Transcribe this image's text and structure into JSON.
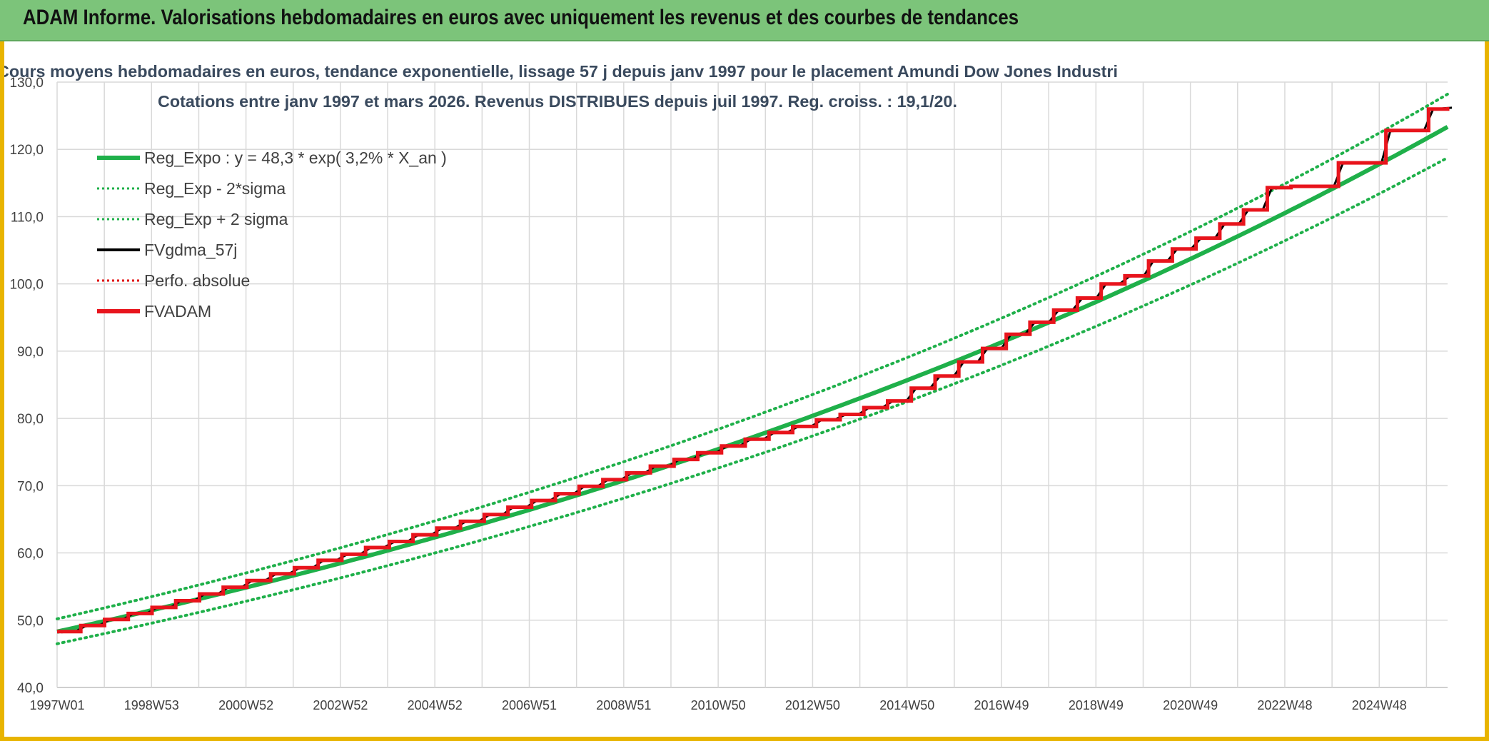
{
  "header": {
    "title": "ADAM Informe. Valorisations hebdomadaires en euros avec uniquement les revenus et des courbes de tendances"
  },
  "chart_data": {
    "type": "line",
    "title": "Cours moyens hebdomadaires en euros, tendance exponentielle, lissage 57 j depuis janv 1997 pour le placement Amundi Dow Jones Industri",
    "subtitle": "Cotations entre janv 1997 et mars 2026. Revenus DISTRIBUES depuis juil 1997. Reg. croiss. : 19,1/20.",
    "xlabel": "",
    "ylabel": "",
    "ylim": [
      40,
      130
    ],
    "yticks": [
      "40,0",
      "50,0",
      "60,0",
      "70,0",
      "80,0",
      "90,0",
      "100,0",
      "110,0",
      "120,0",
      "130,0"
    ],
    "xticks": [
      "1997W01",
      "1998W53",
      "2000W52",
      "2002W52",
      "2004W52",
      "2006W51",
      "2008W51",
      "2010W50",
      "2012W50",
      "2014W50",
      "2016W49",
      "2018W49",
      "2020W49",
      "2022W48",
      "2024W48"
    ],
    "x_range_years": [
      1997.0,
      2026.3
    ],
    "grid": true,
    "legend_position": "top-left",
    "regression": {
      "a": 48.3,
      "rate_percent": 3.2,
      "minus_2sigma_at_start": 46.5,
      "plus_2sigma_at_start": 50.2
    },
    "series": [
      {
        "name": "Reg_Expo : y = 48,3 * exp( 3,2% *  X_an )",
        "color": "#1fb04a",
        "style": "solid-thick"
      },
      {
        "name": "Reg_Exp - 2*sigma",
        "color": "#1fb04a",
        "style": "dotted"
      },
      {
        "name": "Reg_Exp + 2 sigma",
        "color": "#1fb04a",
        "style": "dotted"
      },
      {
        "name": "FVgdma_57j",
        "color": "#000000",
        "style": "solid"
      },
      {
        "name": "Perfo. absolue",
        "color": "#e00000",
        "style": "dotted"
      },
      {
        "name": "FVADAM",
        "color": "#e8141c",
        "style": "solid-thick",
        "x": [
          1997.0,
          1997.5,
          1998.0,
          1998.5,
          1999.0,
          1999.5,
          2000.0,
          2000.5,
          2001.0,
          2001.5,
          2002.0,
          2002.5,
          2003.0,
          2003.5,
          2004.0,
          2004.5,
          2005.0,
          2005.5,
          2006.0,
          2006.5,
          2007.0,
          2007.5,
          2008.0,
          2008.5,
          2009.0,
          2009.5,
          2010.0,
          2010.5,
          2011.0,
          2011.5,
          2012.0,
          2012.5,
          2013.0,
          2013.5,
          2014.0,
          2014.5,
          2015.0,
          2015.5,
          2016.0,
          2016.5,
          2017.0,
          2017.5,
          2018.0,
          2018.5,
          2019.0,
          2019.5,
          2020.0,
          2020.5,
          2021.0,
          2021.5,
          2022.0,
          2022.5,
          2023.0,
          2024.0,
          2025.0,
          2025.9,
          2026.3
        ],
        "values": [
          48.3,
          49.2,
          50.1,
          51.0,
          51.9,
          52.9,
          53.9,
          54.9,
          55.9,
          56.9,
          57.8,
          58.9,
          59.8,
          60.8,
          61.7,
          62.7,
          63.7,
          64.7,
          65.7,
          66.8,
          67.8,
          68.8,
          69.9,
          70.9,
          71.9,
          72.9,
          73.9,
          74.9,
          75.9,
          76.9,
          77.9,
          78.8,
          79.8,
          80.6,
          81.6,
          82.6,
          84.5,
          86.3,
          88.4,
          90.4,
          92.5,
          94.3,
          96.1,
          97.9,
          100.0,
          101.2,
          103.4,
          105.2,
          106.8,
          108.9,
          111.0,
          114.3,
          114.5,
          118.0,
          122.8,
          126.0,
          126.3
        ]
      }
    ]
  }
}
